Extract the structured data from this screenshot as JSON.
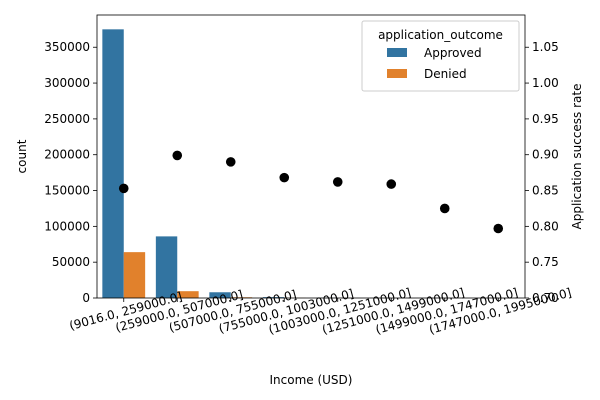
{
  "chart_data": {
    "type": "bar",
    "title": "",
    "xlabel": "Income (USD)",
    "ylabel": "count",
    "y2label": "Application success rate",
    "categories": [
      "(9016.0, 259000.0]",
      "(259000.0, 507000.0]",
      "(507000.0, 755000.0]",
      "(755000.0, 1003000.0]",
      "(1003000.0, 1251000.0]",
      "(1251000.0, 1499000.0]",
      "(1499000.0, 1747000.0]",
      "(1747000.0, 1995000.0]"
    ],
    "series": [
      {
        "name": "Approved",
        "values": [
          375000,
          86000,
          8000,
          1200,
          250,
          80,
          25,
          10
        ],
        "color": "#3274a1"
      },
      {
        "name": "Denied",
        "values": [
          64000,
          9500,
          1000,
          200,
          40,
          12,
          5,
          2
        ],
        "color": "#e1812c"
      }
    ],
    "overlay": {
      "type": "scatter",
      "axis": "right",
      "values": [
        0.853,
        0.899,
        0.89,
        0.868,
        0.862,
        0.859,
        0.825,
        0.797
      ],
      "color": "#000000"
    },
    "ylim": [
      0,
      395000
    ],
    "yticks": [
      0,
      50000,
      100000,
      150000,
      200000,
      250000,
      300000,
      350000
    ],
    "ytick_labels": [
      "0",
      "50000",
      "100000",
      "150000",
      "200000",
      "250000",
      "300000",
      "350000"
    ],
    "y2lim": [
      0.7,
      1.095
    ],
    "y2ticks": [
      0.7,
      0.75,
      0.8,
      0.85,
      0.9,
      0.95,
      1.0,
      1.05
    ],
    "y2tick_labels": [
      "0.70",
      "0.75",
      "0.80",
      "0.85",
      "0.90",
      "0.95",
      "1.00",
      "1.05"
    ],
    "legend": {
      "title": "application_outcome",
      "position": "top-right",
      "entries": [
        "Approved",
        "Denied"
      ]
    },
    "grid": false
  }
}
